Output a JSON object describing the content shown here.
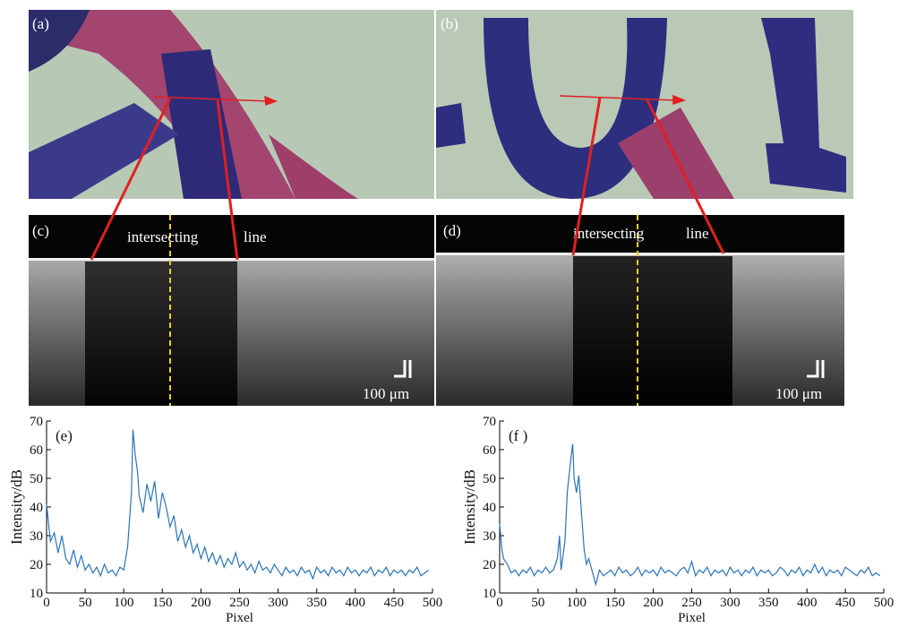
{
  "panels": {
    "photos": [
      "(a)",
      "(b)"
    ],
    "oct": [
      {
        "label": "(c)",
        "text1": "intersecting",
        "text2": "line",
        "scale": "100 μm"
      },
      {
        "label": "(d)",
        "text1": "intersecting",
        "text2": "line",
        "scale": "100 μm"
      }
    ]
  },
  "chart_data": [
    {
      "type": "line",
      "label": "(e)",
      "x_label": "Pixel",
      "y_label": "Intensity/dB",
      "color": "#2a73b8",
      "xlim": [
        0,
        500
      ],
      "ylim": [
        10,
        70
      ],
      "xticks": [
        0,
        50,
        100,
        150,
        200,
        250,
        300,
        350,
        400,
        450,
        500
      ],
      "yticks": [
        10,
        20,
        30,
        40,
        50,
        60,
        70
      ],
      "x": [
        0,
        5,
        10,
        15,
        20,
        25,
        30,
        35,
        40,
        45,
        50,
        55,
        60,
        65,
        70,
        75,
        80,
        85,
        90,
        95,
        100,
        105,
        110,
        112,
        115,
        118,
        120,
        125,
        130,
        135,
        140,
        145,
        150,
        155,
        160,
        165,
        170,
        175,
        180,
        185,
        190,
        195,
        200,
        205,
        210,
        215,
        220,
        225,
        230,
        235,
        240,
        245,
        250,
        255,
        260,
        265,
        270,
        275,
        280,
        285,
        290,
        295,
        300,
        305,
        310,
        315,
        320,
        325,
        330,
        335,
        340,
        345,
        350,
        355,
        360,
        365,
        370,
        375,
        380,
        385,
        390,
        395,
        400,
        405,
        410,
        415,
        420,
        425,
        430,
        435,
        440,
        445,
        450,
        455,
        460,
        465,
        470,
        475,
        480,
        485,
        490,
        495
      ],
      "values": [
        41,
        28,
        31,
        24,
        30,
        22,
        20,
        25,
        19,
        23,
        18,
        20,
        17,
        19,
        16,
        20,
        17,
        18,
        16,
        19,
        18,
        26,
        45,
        67,
        58,
        52,
        44,
        38,
        48,
        42,
        49,
        36,
        45,
        40,
        33,
        37,
        28,
        32,
        26,
        30,
        24,
        27,
        22,
        26,
        21,
        24,
        20,
        23,
        19,
        22,
        20,
        24,
        19,
        21,
        18,
        20,
        17,
        21,
        18,
        19,
        17,
        20,
        18,
        16,
        19,
        17,
        18,
        16,
        19,
        17,
        18,
        15,
        19,
        17,
        18,
        16,
        19,
        17,
        18,
        16,
        19,
        17,
        18,
        16,
        18,
        17,
        19,
        16,
        18,
        17,
        19,
        16,
        18,
        17,
        18,
        16,
        18,
        17,
        19,
        16,
        17,
        18
      ]
    },
    {
      "type": "line",
      "label": "(f )",
      "x_label": "Pixel",
      "y_label": "Intensity/dB",
      "color": "#2a73b8",
      "xlim": [
        0,
        500
      ],
      "ylim": [
        10,
        70
      ],
      "xticks": [
        0,
        50,
        100,
        150,
        200,
        250,
        300,
        350,
        400,
        450,
        500
      ],
      "yticks": [
        10,
        20,
        30,
        40,
        50,
        60,
        70
      ],
      "x": [
        0,
        3,
        5,
        10,
        15,
        20,
        25,
        30,
        35,
        40,
        45,
        50,
        55,
        60,
        65,
        70,
        75,
        78,
        80,
        85,
        88,
        92,
        95,
        97,
        100,
        103,
        106,
        110,
        113,
        116,
        120,
        125,
        130,
        135,
        140,
        145,
        150,
        155,
        160,
        165,
        170,
        175,
        180,
        185,
        190,
        195,
        200,
        205,
        210,
        215,
        220,
        225,
        230,
        235,
        240,
        245,
        250,
        255,
        260,
        265,
        270,
        275,
        280,
        285,
        290,
        295,
        300,
        305,
        310,
        315,
        320,
        325,
        330,
        335,
        340,
        345,
        350,
        355,
        360,
        365,
        370,
        375,
        380,
        385,
        390,
        395,
        400,
        405,
        410,
        415,
        420,
        425,
        430,
        435,
        440,
        445,
        450,
        455,
        460,
        465,
        470,
        475,
        480,
        485,
        490,
        495
      ],
      "values": [
        34,
        25,
        22,
        20,
        17,
        18,
        16,
        18,
        17,
        19,
        16,
        18,
        17,
        19,
        17,
        18,
        22,
        30,
        18,
        28,
        45,
        55,
        62,
        50,
        45,
        51,
        40,
        25,
        20,
        22,
        18,
        13,
        18,
        16,
        17,
        18,
        16,
        19,
        17,
        18,
        16,
        17,
        19,
        16,
        18,
        17,
        18,
        16,
        19,
        17,
        18,
        17,
        16,
        18,
        19,
        17,
        21,
        16,
        18,
        17,
        19,
        16,
        18,
        17,
        18,
        16,
        19,
        17,
        18,
        16,
        18,
        17,
        19,
        16,
        18,
        17,
        18,
        16,
        17,
        19,
        18,
        16,
        18,
        17,
        19,
        16,
        18,
        17,
        20,
        17,
        19,
        16,
        18,
        17,
        18,
        16,
        19,
        18,
        17,
        16,
        18,
        17,
        19,
        16,
        17,
        16
      ]
    }
  ]
}
